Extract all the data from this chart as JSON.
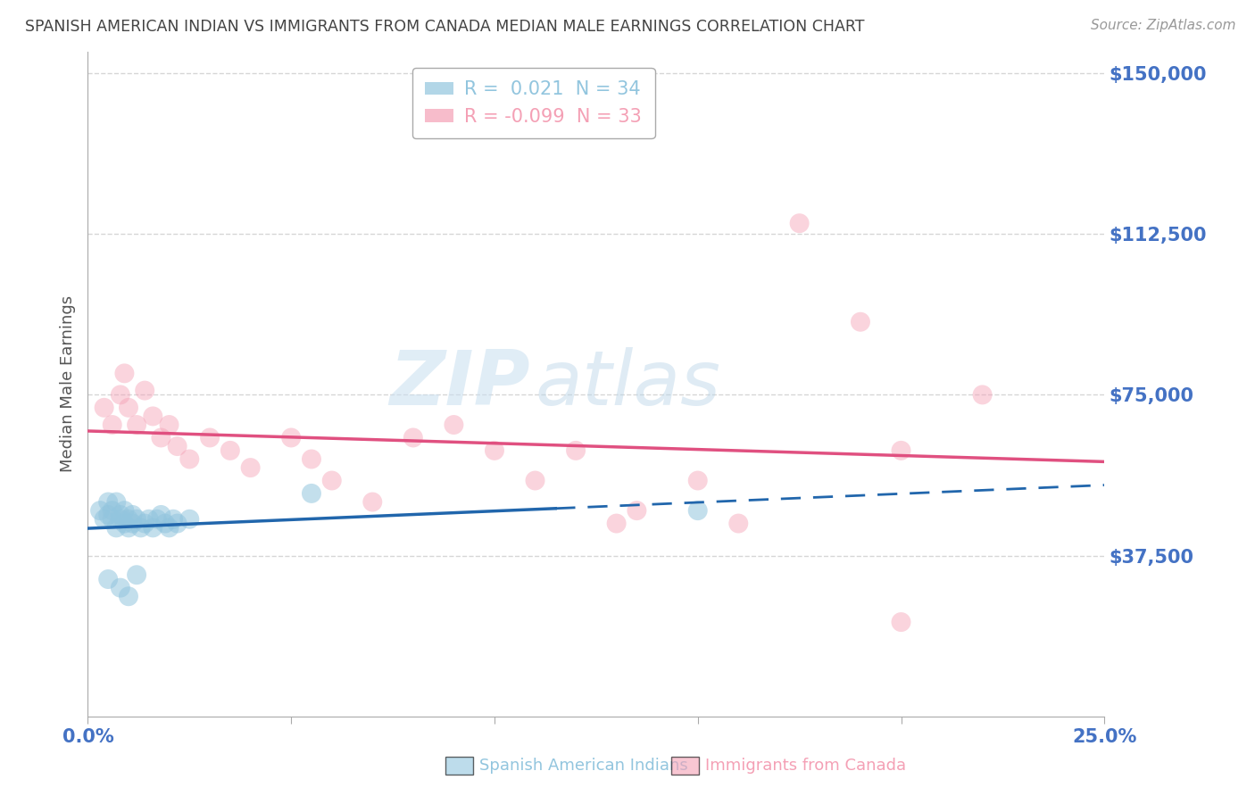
{
  "title": "SPANISH AMERICAN INDIAN VS IMMIGRANTS FROM CANADA MEDIAN MALE EARNINGS CORRELATION CHART",
  "source": "Source: ZipAtlas.com",
  "ylabel": "Median Male Earnings",
  "xlim": [
    0.0,
    0.25
  ],
  "ylim": [
    0,
    155000
  ],
  "yticks": [
    37500,
    75000,
    112500,
    150000
  ],
  "ytick_labels": [
    "$37,500",
    "$75,000",
    "$112,500",
    "$150,000"
  ],
  "xtick_positions": [
    0.0,
    0.05,
    0.1,
    0.15,
    0.2,
    0.25
  ],
  "xtick_labels": [
    "0.0%",
    "",
    "",
    "",
    "",
    "25.0%"
  ],
  "r_blue": 0.021,
  "n_blue": 34,
  "r_pink": -0.099,
  "n_pink": 33,
  "blue_color": "#92c5de",
  "pink_color": "#f4a0b5",
  "blue_line_color": "#2166ac",
  "pink_line_color": "#e05080",
  "blue_scatter": [
    [
      0.003,
      48000
    ],
    [
      0.004,
      46000
    ],
    [
      0.005,
      47000
    ],
    [
      0.005,
      50000
    ],
    [
      0.006,
      48000
    ],
    [
      0.006,
      46000
    ],
    [
      0.007,
      44000
    ],
    [
      0.007,
      50000
    ],
    [
      0.008,
      47000
    ],
    [
      0.008,
      46000
    ],
    [
      0.009,
      48000
    ],
    [
      0.009,
      45000
    ],
    [
      0.01,
      46000
    ],
    [
      0.01,
      44000
    ],
    [
      0.011,
      47000
    ],
    [
      0.011,
      45000
    ],
    [
      0.012,
      46000
    ],
    [
      0.013,
      44000
    ],
    [
      0.014,
      45000
    ],
    [
      0.015,
      46000
    ],
    [
      0.016,
      44000
    ],
    [
      0.017,
      46000
    ],
    [
      0.018,
      47000
    ],
    [
      0.019,
      45000
    ],
    [
      0.02,
      44000
    ],
    [
      0.021,
      46000
    ],
    [
      0.022,
      45000
    ],
    [
      0.025,
      46000
    ],
    [
      0.005,
      32000
    ],
    [
      0.008,
      30000
    ],
    [
      0.01,
      28000
    ],
    [
      0.012,
      33000
    ],
    [
      0.15,
      48000
    ],
    [
      0.055,
      52000
    ]
  ],
  "pink_scatter": [
    [
      0.004,
      72000
    ],
    [
      0.006,
      68000
    ],
    [
      0.008,
      75000
    ],
    [
      0.009,
      80000
    ],
    [
      0.01,
      72000
    ],
    [
      0.012,
      68000
    ],
    [
      0.014,
      76000
    ],
    [
      0.016,
      70000
    ],
    [
      0.018,
      65000
    ],
    [
      0.02,
      68000
    ],
    [
      0.022,
      63000
    ],
    [
      0.025,
      60000
    ],
    [
      0.03,
      65000
    ],
    [
      0.035,
      62000
    ],
    [
      0.04,
      58000
    ],
    [
      0.05,
      65000
    ],
    [
      0.055,
      60000
    ],
    [
      0.06,
      55000
    ],
    [
      0.07,
      50000
    ],
    [
      0.08,
      65000
    ],
    [
      0.09,
      68000
    ],
    [
      0.1,
      62000
    ],
    [
      0.11,
      55000
    ],
    [
      0.12,
      62000
    ],
    [
      0.13,
      45000
    ],
    [
      0.135,
      48000
    ],
    [
      0.15,
      55000
    ],
    [
      0.16,
      45000
    ],
    [
      0.175,
      115000
    ],
    [
      0.19,
      92000
    ],
    [
      0.2,
      62000
    ],
    [
      0.22,
      75000
    ],
    [
      0.2,
      22000
    ]
  ],
  "watermark_zip": "ZIP",
  "watermark_atlas": "atlas",
  "bg_color": "#ffffff",
  "grid_color": "#cccccc",
  "title_color": "#444444",
  "source_color": "#999999",
  "ytick_color": "#4472c4",
  "xtick_color": "#4472c4",
  "legend_label_blue": "Spanish American Indians",
  "legend_label_pink": "Immigrants from Canada"
}
